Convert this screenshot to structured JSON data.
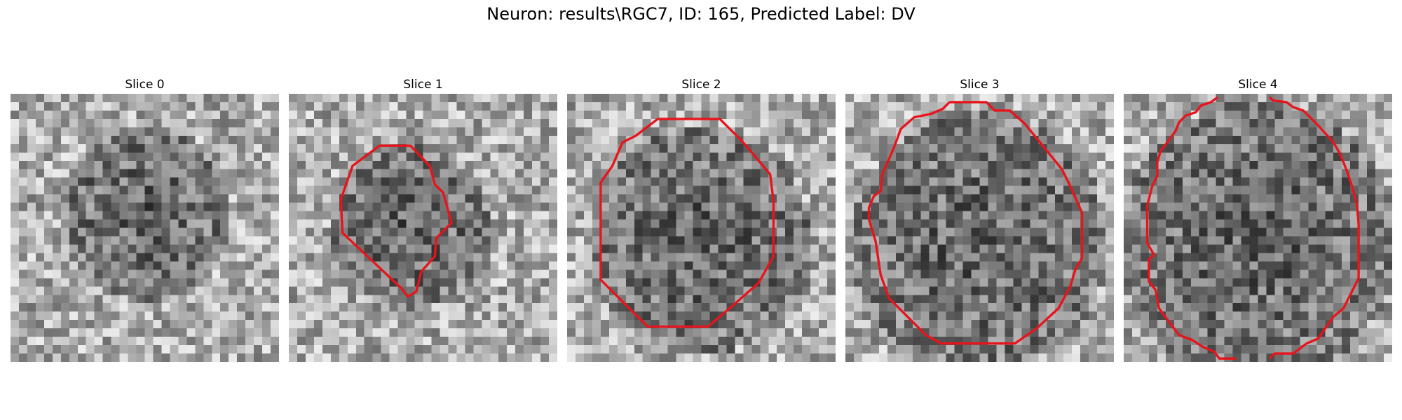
{
  "figure": {
    "title": "Neuron: results\\RGC7, ID: 165, Predicted Label: DV"
  },
  "panels": [
    {
      "title": "Slice 0",
      "has_contour": false,
      "seed": 11,
      "dark_center": [
        0.5,
        0.45
      ],
      "dark_radius": 0.32
    },
    {
      "title": "Slice 1",
      "has_contour": true,
      "seed": 23,
      "dark_center": [
        0.45,
        0.5
      ],
      "dark_radius": 0.3
    },
    {
      "title": "Slice 2",
      "has_contour": true,
      "seed": 37,
      "dark_center": [
        0.5,
        0.55
      ],
      "dark_radius": 0.42
    },
    {
      "title": "Slice 3",
      "has_contour": true,
      "seed": 41,
      "dark_center": [
        0.5,
        0.55
      ],
      "dark_radius": 0.48
    },
    {
      "title": "Slice 4",
      "has_contour": true,
      "seed": 53,
      "dark_center": [
        0.5,
        0.55
      ],
      "dark_radius": 0.52
    }
  ],
  "colors": {
    "contour": "#e8141b"
  }
}
